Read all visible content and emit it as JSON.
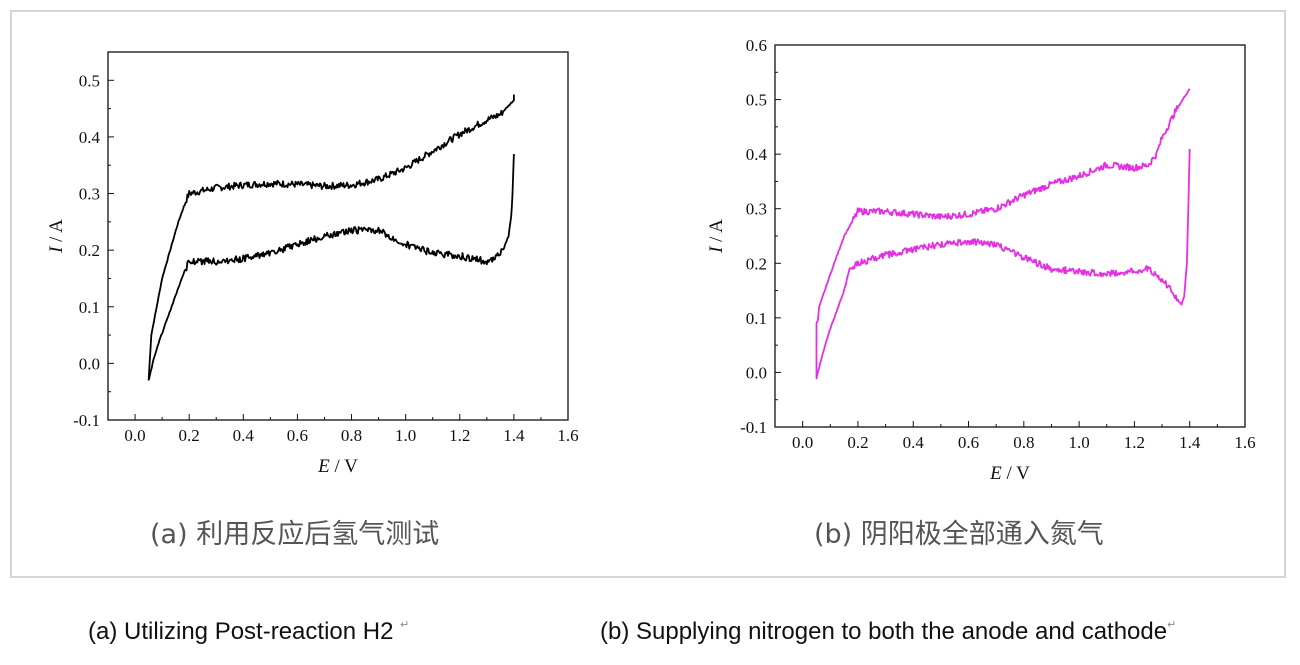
{
  "subcaptions": {
    "a": "(a) 利用反应后氢气测试",
    "b": "(b) 阴阳极全部通入氮气"
  },
  "english_captions": {
    "a": "(a) Utilizing Post-reaction H2",
    "b": "(b) Supplying nitrogen to both the anode and cathode"
  },
  "chart_data": [
    {
      "type": "line",
      "panel": "a",
      "xlabel_italic": "E",
      "xlabel_unit": " / V",
      "ylabel_italic": "I",
      "ylabel_unit": " / A",
      "xlim": [
        -0.1,
        1.6
      ],
      "ylim": [
        -0.1,
        0.55
      ],
      "xticks": [
        "0.0",
        "0.2",
        "0.4",
        "0.6",
        "0.8",
        "1.0",
        "1.2",
        "1.4",
        "1.6"
      ],
      "yticks": [
        "-0.1",
        "0.0",
        "0.1",
        "0.2",
        "0.3",
        "0.4",
        "0.5"
      ],
      "color": "#000000",
      "series": [
        {
          "x": [
            0.05,
            0.06,
            0.08,
            0.1,
            0.13,
            0.16,
            0.19,
            0.2,
            0.25,
            0.3,
            0.4,
            0.5,
            0.6,
            0.7,
            0.8,
            0.9,
            1.0,
            1.1,
            1.2,
            1.3,
            1.35,
            1.4,
            1.4
          ],
          "y": [
            -0.03,
            0.05,
            0.1,
            0.15,
            0.2,
            0.25,
            0.29,
            0.3,
            0.305,
            0.31,
            0.315,
            0.318,
            0.316,
            0.313,
            0.315,
            0.325,
            0.345,
            0.375,
            0.405,
            0.43,
            0.44,
            0.465,
            0.475
          ]
        },
        {
          "x": [
            1.4,
            1.395,
            1.39,
            1.38,
            1.36,
            1.33,
            1.3,
            1.2,
            1.1,
            1.0,
            0.9,
            0.8,
            0.7,
            0.6,
            0.5,
            0.4,
            0.3,
            0.2,
            0.18,
            0.15,
            0.12,
            0.09,
            0.07,
            0.055,
            0.05
          ],
          "y": [
            0.37,
            0.3,
            0.26,
            0.225,
            0.2,
            0.185,
            0.18,
            0.19,
            0.195,
            0.21,
            0.235,
            0.235,
            0.225,
            0.21,
            0.195,
            0.185,
            0.18,
            0.18,
            0.16,
            0.12,
            0.08,
            0.04,
            0.01,
            -0.02,
            -0.03
          ]
        }
      ]
    },
    {
      "type": "line",
      "panel": "b",
      "xlabel_italic": "E",
      "xlabel_unit": " / V",
      "ylabel_italic": "I",
      "ylabel_unit": " / A",
      "xlim": [
        -0.1,
        1.6
      ],
      "ylim": [
        -0.1,
        0.6
      ],
      "xticks": [
        "0.0",
        "0.2",
        "0.4",
        "0.6",
        "0.8",
        "1.0",
        "1.2",
        "1.4",
        "1.6"
      ],
      "yticks": [
        "-0.1",
        "0.0",
        "0.1",
        "0.2",
        "0.3",
        "0.4",
        "0.5",
        "0.6"
      ],
      "color": "#e62ee6",
      "series": [
        {
          "x": [
            0.05,
            0.055,
            0.06,
            0.1,
            0.15,
            0.2,
            0.3,
            0.4,
            0.5,
            0.6,
            0.7,
            0.8,
            0.9,
            1.0,
            1.1,
            1.2,
            1.25,
            1.28,
            1.3,
            1.35,
            1.4
          ],
          "y": [
            0.09,
            0.095,
            0.12,
            0.18,
            0.25,
            0.295,
            0.295,
            0.29,
            0.285,
            0.29,
            0.3,
            0.325,
            0.345,
            0.36,
            0.38,
            0.375,
            0.38,
            0.4,
            0.43,
            0.48,
            0.52
          ]
        },
        {
          "x": [
            1.4,
            1.395,
            1.39,
            1.38,
            1.37,
            1.36,
            1.34,
            1.3,
            1.25,
            1.2,
            1.1,
            1.0,
            0.9,
            0.8,
            0.7,
            0.6,
            0.5,
            0.4,
            0.3,
            0.2,
            0.17,
            0.15,
            0.1,
            0.07,
            0.05,
            0.05
          ],
          "y": [
            0.41,
            0.3,
            0.2,
            0.14,
            0.125,
            0.13,
            0.145,
            0.17,
            0.19,
            0.185,
            0.18,
            0.185,
            0.19,
            0.21,
            0.235,
            0.24,
            0.235,
            0.225,
            0.215,
            0.2,
            0.19,
            0.15,
            0.08,
            0.03,
            -0.01,
            0.09
          ]
        }
      ]
    }
  ]
}
